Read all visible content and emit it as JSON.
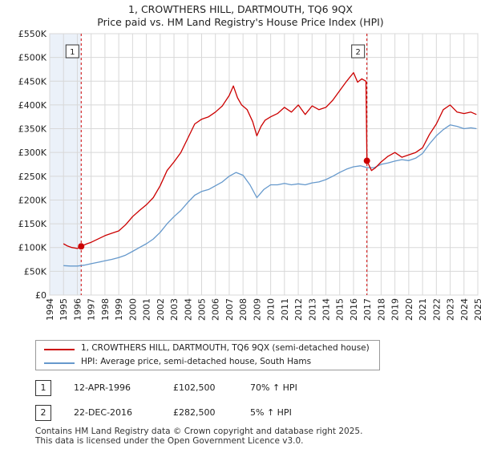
{
  "title_line1": "1, CROWTHERS HILL, DARTMOUTH, TQ6 9QX",
  "title_line2": "Price paid vs. HM Land Registry's House Price Index (HPI)",
  "legend": {
    "series1": "1, CROWTHERS HILL, DARTMOUTH, TQ6 9QX (semi-detached house)",
    "series2": "HPI: Average price, semi-detached house, South Hams"
  },
  "colors": {
    "price": "#cc0000",
    "hpi": "#6699cc",
    "band": "#dde8f5",
    "marker": "#cc0000"
  },
  "transactions": [
    {
      "num": "1",
      "date": "12-APR-1996",
      "price": "£102,500",
      "hpi": "70% ↑ HPI"
    },
    {
      "num": "2",
      "date": "22-DEC-2016",
      "price": "£282,500",
      "hpi": "5% ↑ HPI"
    }
  ],
  "footer_line1": "Contains HM Land Registry data © Crown copyright and database right 2025.",
  "footer_line2": "This data is licensed under the Open Government Licence v3.0.",
  "chart_data": {
    "type": "line",
    "title": "1, CROWTHERS HILL, DARTMOUTH, TQ6 9QX",
    "xlim": [
      1994,
      2025
    ],
    "ylim": [
      0,
      550000
    ],
    "yticks": [
      0,
      50000,
      100000,
      150000,
      200000,
      250000,
      300000,
      350000,
      400000,
      450000,
      500000,
      550000
    ],
    "ytick_labels": [
      "£0",
      "£50K",
      "£100K",
      "£150K",
      "£200K",
      "£250K",
      "£300K",
      "£350K",
      "£400K",
      "£450K",
      "£500K",
      "£550K"
    ],
    "xticks": [
      1994,
      1995,
      1996,
      1997,
      1998,
      1999,
      2000,
      2001,
      2002,
      2003,
      2004,
      2005,
      2006,
      2007,
      2008,
      2009,
      2010,
      2011,
      2012,
      2013,
      2014,
      2015,
      2016,
      2017,
      2018,
      2019,
      2020,
      2021,
      2022,
      2023,
      2024,
      2025
    ],
    "grid": true,
    "sale_markers": [
      {
        "label": "1",
        "x": 1996.28,
        "y": 102500
      },
      {
        "label": "2",
        "x": 2016.97,
        "y": 282500
      }
    ],
    "series": [
      {
        "name": "1, CROWTHERS HILL, DARTMOUTH, TQ6 9QX (semi-detached house)",
        "x": [
          1995.0,
          1995.3,
          1995.6,
          1996.0,
          1996.28,
          1996.7,
          1997.0,
          1997.5,
          1998.0,
          1998.5,
          1999.0,
          1999.5,
          2000.0,
          2000.5,
          2001.0,
          2001.5,
          2002.0,
          2002.5,
          2003.0,
          2003.5,
          2004.0,
          2004.5,
          2005.0,
          2005.5,
          2006.0,
          2006.5,
          2007.0,
          2007.3,
          2007.6,
          2007.9,
          2008.3,
          2008.7,
          2009.0,
          2009.3,
          2009.6,
          2010.0,
          2010.5,
          2011.0,
          2011.5,
          2012.0,
          2012.5,
          2013.0,
          2013.5,
          2014.0,
          2014.5,
          2015.0,
          2015.5,
          2016.0,
          2016.3,
          2016.6,
          2016.9,
          2016.97,
          2017.3,
          2017.6,
          2018.0,
          2018.5,
          2019.0,
          2019.5,
          2020.0,
          2020.5,
          2021.0,
          2021.5,
          2022.0,
          2022.5,
          2023.0,
          2023.5,
          2024.0,
          2024.5,
          2024.9
        ],
        "y": [
          108000,
          103000,
          100000,
          98000,
          102500,
          108000,
          111000,
          118000,
          125000,
          130000,
          135000,
          148000,
          165000,
          178000,
          190000,
          205000,
          230000,
          262000,
          280000,
          300000,
          330000,
          360000,
          370000,
          375000,
          385000,
          398000,
          420000,
          440000,
          415000,
          400000,
          390000,
          365000,
          335000,
          355000,
          368000,
          375000,
          382000,
          395000,
          385000,
          400000,
          380000,
          398000,
          390000,
          395000,
          410000,
          430000,
          450000,
          468000,
          448000,
          455000,
          450000,
          282500,
          262000,
          268000,
          280000,
          292000,
          300000,
          290000,
          295000,
          300000,
          310000,
          338000,
          360000,
          390000,
          400000,
          385000,
          382000,
          385000,
          380000
        ]
      },
      {
        "name": "HPI: Average price, semi-detached house, South Hams",
        "x": [
          1995.0,
          1995.5,
          1996.0,
          1996.5,
          1997.0,
          1997.5,
          1998.0,
          1998.5,
          1999.0,
          1999.5,
          2000.0,
          2000.5,
          2001.0,
          2001.5,
          2002.0,
          2002.5,
          2003.0,
          2003.5,
          2004.0,
          2004.5,
          2005.0,
          2005.5,
          2006.0,
          2006.5,
          2007.0,
          2007.5,
          2008.0,
          2008.5,
          2009.0,
          2009.5,
          2010.0,
          2010.5,
          2011.0,
          2011.5,
          2012.0,
          2012.5,
          2013.0,
          2013.5,
          2014.0,
          2014.5,
          2015.0,
          2015.5,
          2016.0,
          2016.5,
          2017.0,
          2017.5,
          2018.0,
          2018.5,
          2019.0,
          2019.5,
          2020.0,
          2020.5,
          2021.0,
          2021.5,
          2022.0,
          2022.5,
          2023.0,
          2023.5,
          2024.0,
          2024.5,
          2024.9
        ],
        "y": [
          62000,
          61000,
          61000,
          63000,
          66000,
          69000,
          72000,
          75000,
          79000,
          84000,
          92000,
          100000,
          108000,
          118000,
          132000,
          150000,
          165000,
          178000,
          195000,
          210000,
          218000,
          222000,
          230000,
          238000,
          250000,
          258000,
          252000,
          232000,
          205000,
          222000,
          232000,
          232000,
          235000,
          232000,
          234000,
          232000,
          236000,
          238000,
          243000,
          250000,
          258000,
          265000,
          270000,
          272000,
          268000,
          268000,
          275000,
          278000,
          282000,
          285000,
          283000,
          288000,
          298000,
          318000,
          335000,
          348000,
          358000,
          355000,
          350000,
          352000,
          350000
        ]
      }
    ]
  }
}
